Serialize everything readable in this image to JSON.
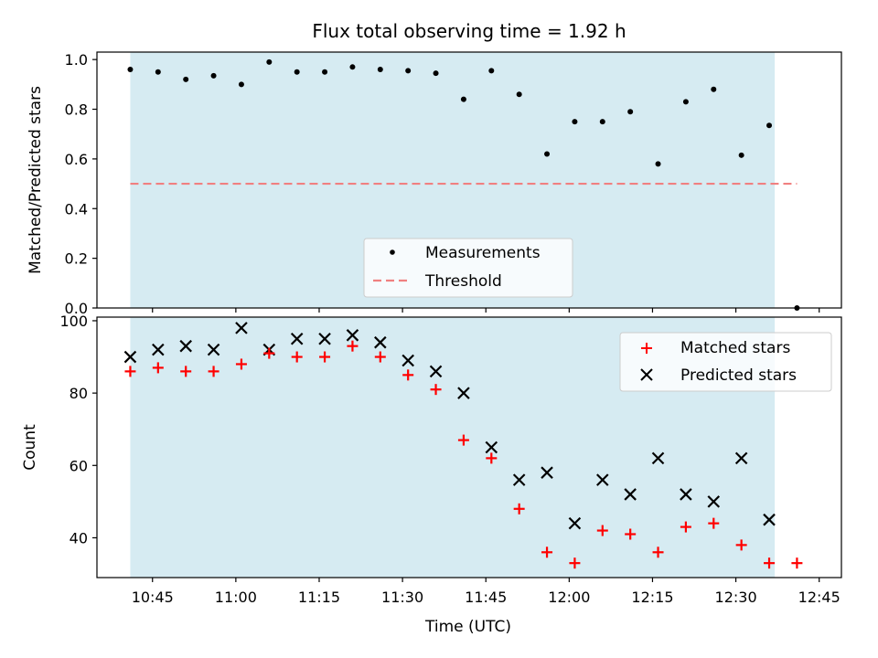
{
  "chart_data": [
    {
      "type": "scatter",
      "title": "Flux total observing time = 1.92 h",
      "xlabel": "",
      "ylabel": "Matched/Predicted stars",
      "ylim": [
        0.0,
        1.03
      ],
      "yticks": [
        "0.0",
        "0.2",
        "0.4",
        "0.6",
        "0.8",
        "1.0"
      ],
      "observing_window": [
        "10:41",
        "12:37"
      ],
      "observing_window_color": "#add8e6",
      "legend_position": "lower center",
      "series": [
        {
          "name": "Measurements",
          "color": "#000000",
          "x": [
            "10:41",
            "10:46",
            "10:51",
            "10:56",
            "11:01",
            "11:06",
            "11:11",
            "11:16",
            "11:21",
            "11:26",
            "11:31",
            "11:36",
            "11:41",
            "11:46",
            "11:51",
            "11:56",
            "12:01",
            "12:06",
            "12:11",
            "12:16",
            "12:21",
            "12:26",
            "12:31",
            "12:36",
            "12:41"
          ],
          "values": [
            0.96,
            0.95,
            0.92,
            0.935,
            0.9,
            0.99,
            0.95,
            0.95,
            0.97,
            0.96,
            0.955,
            0.945,
            0.84,
            0.955,
            0.86,
            0.62,
            0.75,
            0.75,
            0.79,
            0.58,
            0.83,
            0.88,
            0.615,
            0.735,
            0.0
          ]
        },
        {
          "name": "Threshold",
          "color": "#f08080",
          "value": 0.5
        }
      ]
    },
    {
      "type": "scatter",
      "xlabel": "Time (UTC)",
      "ylabel": "Count",
      "ylim": [
        29,
        101
      ],
      "yticks": [
        "40",
        "60",
        "80",
        "100"
      ],
      "xticks": [
        "10:45",
        "11:00",
        "11:15",
        "11:30",
        "11:45",
        "12:00",
        "12:15",
        "12:30",
        "12:45"
      ],
      "observing_window": [
        "10:41",
        "12:37"
      ],
      "observing_window_color": "#add8e6",
      "legend_position": "upper right",
      "x": [
        "10:41",
        "10:46",
        "10:51",
        "10:56",
        "11:01",
        "11:06",
        "11:11",
        "11:16",
        "11:21",
        "11:26",
        "11:31",
        "11:36",
        "11:41",
        "11:46",
        "11:51",
        "11:56",
        "12:01",
        "12:06",
        "12:11",
        "12:16",
        "12:21",
        "12:26",
        "12:31",
        "12:36",
        "12:41"
      ],
      "series": [
        {
          "name": "Matched stars",
          "color": "#ff0000",
          "values": [
            86,
            87,
            86,
            86,
            88,
            91,
            90,
            90,
            93,
            90,
            85,
            81,
            67,
            62,
            48,
            36,
            33,
            42,
            41,
            36,
            43,
            44,
            38,
            33,
            33
          ]
        },
        {
          "name": "Predicted stars",
          "color": "#000000",
          "values": [
            90,
            92,
            93,
            92,
            98,
            92,
            95,
            95,
            96,
            94,
            89,
            86,
            80,
            65,
            56,
            58,
            44,
            56,
            52,
            62,
            52,
            50,
            62,
            45,
            null
          ]
        }
      ]
    }
  ]
}
